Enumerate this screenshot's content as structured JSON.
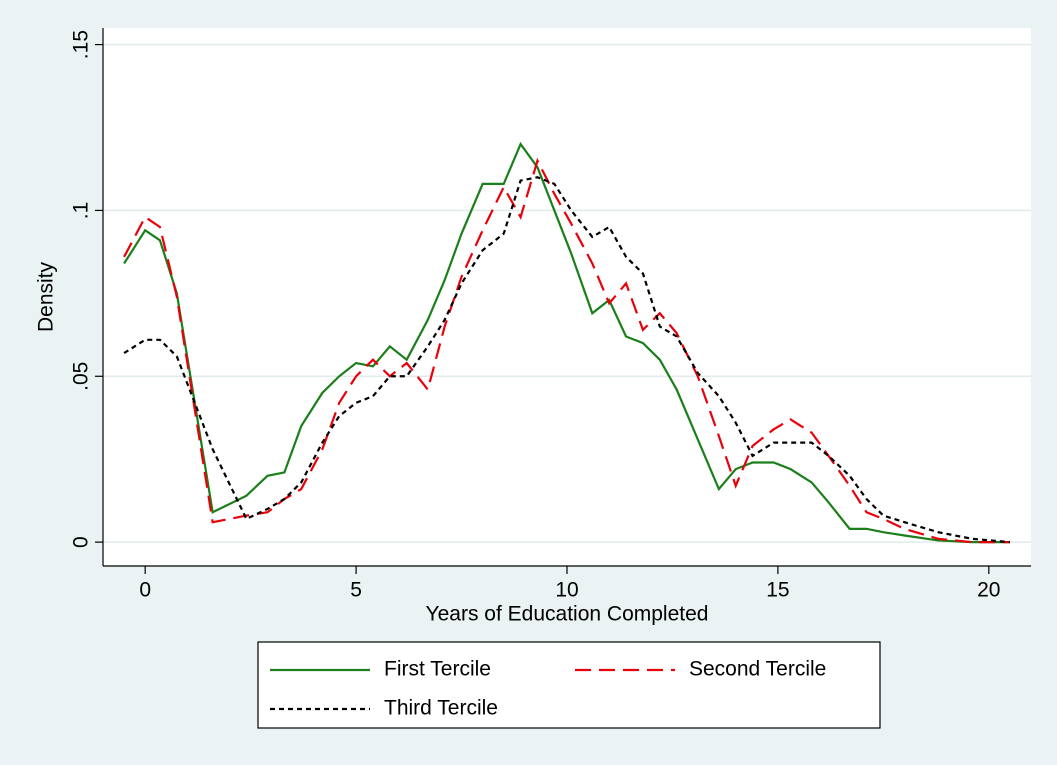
{
  "chart_data": {
    "type": "line",
    "x_label": "Years of Education Completed",
    "y_label": "Density",
    "x": [
      -0.5,
      0,
      0.35,
      0.75,
      1.6,
      2.4,
      2.9,
      3.3,
      3.7,
      4.2,
      4.6,
      5,
      5.4,
      5.8,
      6.2,
      6.7,
      7.1,
      7.5,
      8,
      8.5,
      8.9,
      9.3,
      9.7,
      10.1,
      10.6,
      11,
      11.4,
      11.8,
      12.2,
      12.6,
      13.1,
      13.6,
      14,
      14.4,
      14.9,
      15.3,
      15.8,
      16.2,
      16.7,
      17.1,
      17.5,
      18,
      18.8,
      19.6,
      20.5
    ],
    "series": [
      {
        "name": "First Tercile",
        "color": "#1b7f1b",
        "dash": "solid",
        "values": [
          0.084,
          0.094,
          0.091,
          0.075,
          0.009,
          0.014,
          0.02,
          0.021,
          0.035,
          0.045,
          0.05,
          0.054,
          0.053,
          0.059,
          0.055,
          0.067,
          0.079,
          0.093,
          0.108,
          0.108,
          0.12,
          0.113,
          0.1,
          0.087,
          0.069,
          0.073,
          0.062,
          0.06,
          0.055,
          0.046,
          0.031,
          0.016,
          0.022,
          0.024,
          0.024,
          0.022,
          0.018,
          0.012,
          0.004,
          0.004,
          0.003,
          0.002,
          0.0005,
          0,
          0
        ]
      },
      {
        "name": "Second Tercile",
        "color": "#e8000b",
        "dash": "dashed",
        "values": [
          0.086,
          0.098,
          0.095,
          0.074,
          0.006,
          0.008,
          0.009,
          0.013,
          0.016,
          0.028,
          0.042,
          0.05,
          0.055,
          0.05,
          0.054,
          0.046,
          0.065,
          0.08,
          0.094,
          0.107,
          0.098,
          0.115,
          0.105,
          0.096,
          0.084,
          0.072,
          0.078,
          0.064,
          0.069,
          0.063,
          0.05,
          0.032,
          0.017,
          0.029,
          0.034,
          0.037,
          0.033,
          0.026,
          0.017,
          0.009,
          0.007,
          0.004,
          0.001,
          0,
          0
        ]
      },
      {
        "name": "Third Tercile",
        "color": "#000000",
        "dash": "dotted",
        "values": [
          0.057,
          0.061,
          0.061,
          0.056,
          0.028,
          0.007,
          0.01,
          0.013,
          0.018,
          0.03,
          0.038,
          0.042,
          0.044,
          0.05,
          0.05,
          0.059,
          0.067,
          0.078,
          0.088,
          0.093,
          0.109,
          0.11,
          0.108,
          0.1,
          0.092,
          0.095,
          0.086,
          0.081,
          0.065,
          0.062,
          0.051,
          0.044,
          0.036,
          0.026,
          0.03,
          0.03,
          0.03,
          0.026,
          0.02,
          0.013,
          0.008,
          0.006,
          0.003,
          0.001,
          0
        ]
      }
    ],
    "xlim": [
      -1,
      21
    ],
    "xticks": [
      0,
      5,
      10,
      15,
      20
    ],
    "ylim": [
      -0.0072,
      0.155
    ],
    "yticks": [
      0,
      {
        "value": 0.05,
        "label": ".05"
      },
      {
        "value": 0.1,
        "label": ".1"
      },
      {
        "value": 0.15,
        "label": ".15"
      }
    ],
    "grid": true,
    "legend_position": "bottom"
  }
}
